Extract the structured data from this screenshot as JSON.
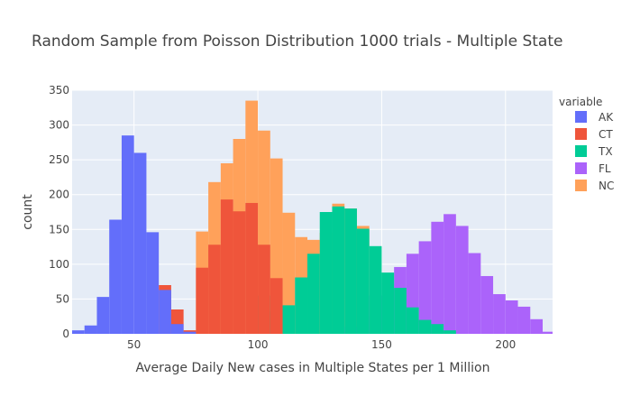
{
  "colors": {
    "plot_bg": "#E5ECF6",
    "grid": "#ffffff",
    "AK": "#636EFA",
    "CT": "#EF553B",
    "TX": "#00CC96",
    "FL": "#AB63FA",
    "NC": "#FFA15A"
  },
  "chart_data": {
    "type": "histogram",
    "barmode": "overlay",
    "title": "Random Sample from Poisson Distribution 1000 trials - Multiple State",
    "xlabel": "Average Daily New cases in Multiple States per 1 Million",
    "ylabel": "count",
    "xlim": [
      25,
      219
    ],
    "ylim": [
      0,
      350
    ],
    "xticks": [
      50,
      100,
      150,
      200
    ],
    "yticks": [
      0,
      50,
      100,
      150,
      200,
      250,
      300,
      350
    ],
    "grid": true,
    "legend": {
      "title": "variable",
      "position": "right"
    },
    "bin_width": 5,
    "series": [
      {
        "name": "NC",
        "color": "#FFA15A",
        "x": [
          70,
          75,
          80,
          85,
          90,
          95,
          100,
          105,
          110,
          115,
          120,
          125,
          130,
          135,
          140
        ],
        "y": [
          5,
          147,
          218,
          245,
          280,
          335,
          292,
          252,
          174,
          139,
          135,
          145,
          187,
          180,
          155
        ]
      },
      {
        "name": "FL",
        "color": "#AB63FA",
        "x": [
          130,
          135,
          140,
          145,
          150,
          155,
          160,
          165,
          170,
          175,
          180,
          185,
          190,
          195,
          200,
          205,
          210,
          215
        ],
        "y": [
          5,
          10,
          25,
          55,
          72,
          96,
          115,
          133,
          161,
          172,
          155,
          116,
          83,
          57,
          48,
          39,
          21,
          3
        ]
      },
      {
        "name": "TX",
        "color": "#00CC96",
        "x": [
          100,
          105,
          110,
          115,
          120,
          125,
          130,
          135,
          140,
          145,
          150,
          155,
          160,
          165,
          170,
          175
        ],
        "y": [
          55,
          32,
          41,
          81,
          115,
          175,
          183,
          180,
          151,
          126,
          88,
          66,
          38,
          20,
          14,
          5
        ]
      },
      {
        "name": "CT",
        "color": "#EF553B",
        "x": [
          60,
          65,
          70,
          75,
          80,
          85,
          90,
          95,
          100,
          105
        ],
        "y": [
          70,
          35,
          5,
          95,
          128,
          193,
          176,
          188,
          128,
          80
        ]
      },
      {
        "name": "AK",
        "color": "#636EFA",
        "x": [
          25,
          30,
          35,
          40,
          45,
          50,
          55,
          60,
          65,
          70
        ],
        "y": [
          5,
          12,
          53,
          164,
          285,
          260,
          146,
          63,
          14,
          3
        ]
      }
    ]
  }
}
